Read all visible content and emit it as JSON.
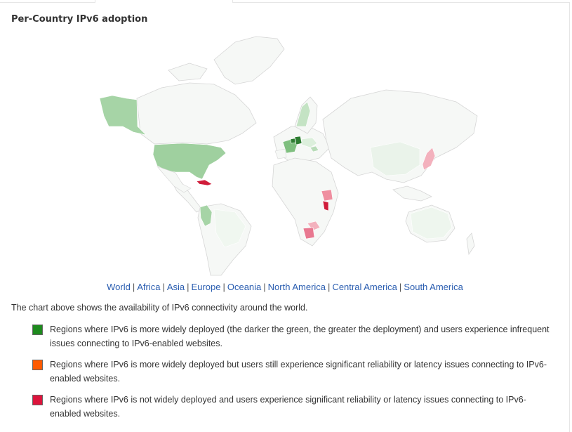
{
  "title": "Per-Country IPv6 adoption",
  "nav": {
    "regions": [
      "World",
      "Africa",
      "Asia",
      "Europe",
      "Oceania",
      "North America",
      "Central America",
      "South America"
    ],
    "separator": "|"
  },
  "description": "The chart above shows the availability of IPv6 connectivity around the world.",
  "legend": [
    {
      "color": "#1e8a1e",
      "text": "Regions where IPv6 is more widely deployed (the darker the green, the greater the deployment) and users experience infrequent issues connecting to IPv6-enabled websites."
    },
    {
      "color": "#ff5a00",
      "text": "Regions where IPv6 is more widely deployed but users still experience significant reliability or latency issues connecting to IPv6-enabled websites."
    },
    {
      "color": "#dc143c",
      "text": "Regions where IPv6 is not widely deployed and users experience significant reliability or latency issues connecting to IPv6-enabled websites."
    }
  ],
  "map_colors": {
    "base": "#f6f8f6",
    "border": "#d6d6d6",
    "light_green": "#9fd09f",
    "pale_green": "#dcefdc",
    "dark_green": "#2e7d32",
    "light_red": "#ef8fa0",
    "red": "#d01c3a"
  }
}
